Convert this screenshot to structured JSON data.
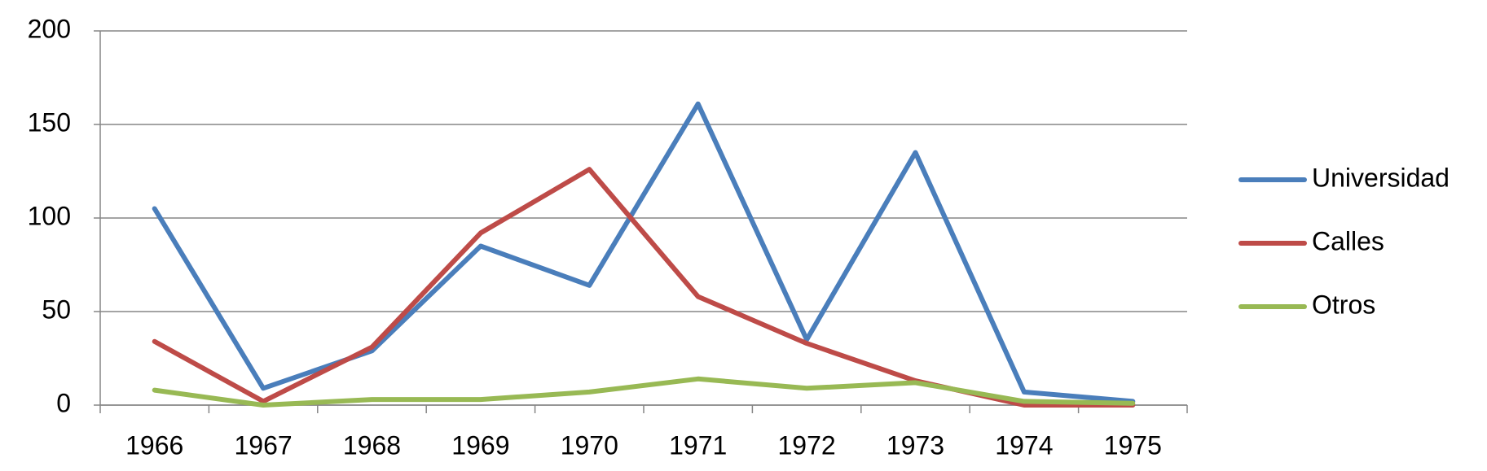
{
  "chart_data": {
    "type": "line",
    "categories": [
      "1966",
      "1967",
      "1968",
      "1969",
      "1970",
      "1971",
      "1972",
      "1973",
      "1974",
      "1975"
    ],
    "series": [
      {
        "name": "Universidad",
        "color": "#4a7ebb",
        "values": [
          105,
          9,
          29,
          85,
          64,
          161,
          35,
          135,
          7,
          2
        ]
      },
      {
        "name": "Calles",
        "color": "#be4b48",
        "values": [
          34,
          2,
          31,
          92,
          126,
          58,
          33,
          13,
          0,
          0
        ]
      },
      {
        "name": "Otros",
        "color": "#98b954",
        "values": [
          8,
          0,
          3,
          3,
          7,
          14,
          9,
          12,
          2,
          1
        ]
      }
    ],
    "ylim": [
      0,
      200
    ],
    "yticks": [
      0,
      50,
      100,
      150,
      200
    ],
    "grid": true,
    "legend": "right"
  }
}
